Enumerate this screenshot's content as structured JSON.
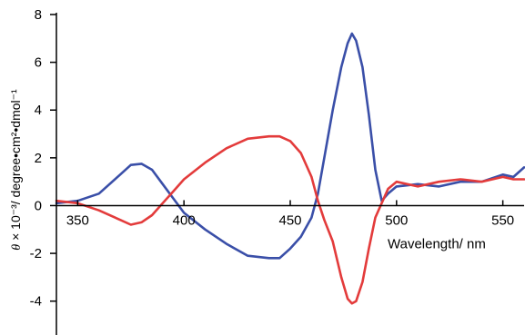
{
  "chart_data": {
    "type": "line",
    "xlabel": "Wavelength/ nm",
    "ylabel_symbol": "θ",
    "ylabel_text": " × 10⁻³/ degree•cm²•dmol⁻¹",
    "xlim": [
      340,
      560
    ],
    "ylim": [
      -5,
      8
    ],
    "x_ticks": [
      350,
      400,
      450,
      500,
      550
    ],
    "y_ticks": [
      -4,
      -2,
      0,
      2,
      4,
      6,
      8
    ],
    "grid": false,
    "legend": "none",
    "series": [
      {
        "color": "#3a4fa8",
        "x": [
          340,
          350,
          360,
          370,
          375,
          380,
          385,
          390,
          395,
          400,
          410,
          420,
          430,
          440,
          445,
          450,
          455,
          460,
          463,
          466,
          470,
          474,
          477,
          479,
          481,
          484,
          487,
          490,
          493,
          496,
          500,
          510,
          520,
          530,
          540,
          550,
          555,
          560
        ],
        "y": [
          0.1,
          0.2,
          0.5,
          1.3,
          1.7,
          1.75,
          1.5,
          0.9,
          0.3,
          -0.3,
          -1.0,
          -1.6,
          -2.1,
          -2.2,
          -2.2,
          -1.8,
          -1.3,
          -0.5,
          0.5,
          2.0,
          4.0,
          5.8,
          6.8,
          7.2,
          6.9,
          5.8,
          3.8,
          1.5,
          0.2,
          0.5,
          0.8,
          0.9,
          0.8,
          1.0,
          1.0,
          1.3,
          1.2,
          1.6
        ]
      },
      {
        "color": "#e33b3b",
        "x": [
          340,
          350,
          360,
          370,
          375,
          380,
          385,
          390,
          395,
          400,
          410,
          420,
          430,
          440,
          445,
          450,
          455,
          460,
          463,
          466,
          470,
          474,
          477,
          479,
          481,
          484,
          487,
          490,
          493,
          496,
          500,
          510,
          520,
          530,
          540,
          550,
          555,
          560
        ],
        "y": [
          0.2,
          0.1,
          -0.2,
          -0.6,
          -0.8,
          -0.7,
          -0.4,
          0.1,
          0.6,
          1.1,
          1.8,
          2.4,
          2.8,
          2.9,
          2.9,
          2.7,
          2.2,
          1.2,
          0.2,
          -0.6,
          -1.5,
          -3.0,
          -3.9,
          -4.1,
          -4.0,
          -3.2,
          -1.8,
          -0.5,
          0.1,
          0.7,
          1.0,
          0.8,
          1.0,
          1.1,
          1.0,
          1.2,
          1.1,
          1.1
        ]
      }
    ]
  }
}
